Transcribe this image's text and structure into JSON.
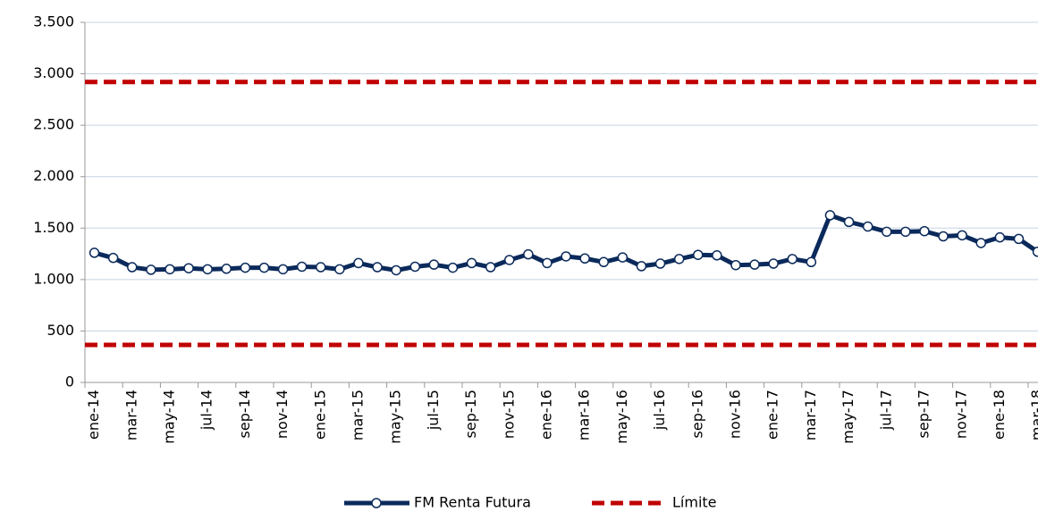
{
  "chart_data": {
    "type": "line",
    "categories": [
      "ene-14",
      null,
      "mar-14",
      null,
      "may-14",
      null,
      "jul-14",
      null,
      "sep-14",
      null,
      "nov-14",
      null,
      "ene-15",
      null,
      "mar-15",
      null,
      "may-15",
      null,
      "jul-15",
      null,
      "sep-15",
      null,
      "nov-15",
      null,
      "ene-16",
      null,
      "mar-16",
      null,
      "may-16",
      null,
      "jul-16",
      null,
      "sep-16",
      null,
      "nov-16",
      null,
      "ene-17",
      null,
      "mar-17",
      null,
      "may-17",
      null,
      "jul-17",
      null,
      "sep-17",
      null,
      "nov-17",
      null,
      "ene-18",
      null,
      "mar-18"
    ],
    "series": [
      {
        "name": "FM Renta Futura",
        "color": "#0b2a5b",
        "values": [
          1260,
          1210,
          1120,
          1095,
          1100,
          1110,
          1100,
          1105,
          1115,
          1115,
          1100,
          1125,
          1120,
          1100,
          1160,
          1120,
          1090,
          1125,
          1145,
          1115,
          1160,
          1120,
          1190,
          1245,
          1160,
          1225,
          1205,
          1170,
          1215,
          1130,
          1155,
          1200,
          1240,
          1235,
          1140,
          1145,
          1155,
          1200,
          1170,
          1625,
          1560,
          1515,
          1465,
          1465,
          1470,
          1420,
          1430,
          1355,
          1410,
          1395,
          1270
        ]
      }
    ],
    "limit": {
      "name": "Límite",
      "color": "#c00000",
      "values": [
        2920,
        365
      ]
    },
    "ylim": [
      0,
      3500
    ],
    "yticks": [
      0,
      500,
      {
        "value": 1000,
        "label": "1.000"
      },
      {
        "value": 1500,
        "label": "1.500"
      },
      {
        "value": 2000,
        "label": "2.000"
      },
      {
        "value": 2500,
        "label": "2.500"
      },
      {
        "value": 3000,
        "label": "3.000"
      },
      {
        "value": 3500,
        "label": "3.500"
      }
    ],
    "grid": true
  }
}
